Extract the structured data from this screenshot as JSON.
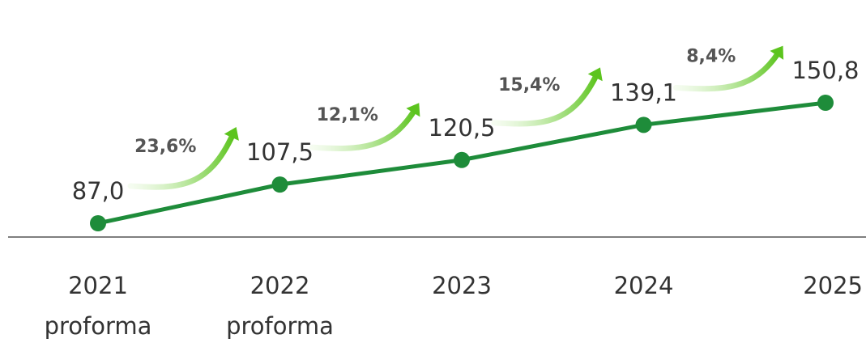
{
  "chart_data": {
    "type": "line",
    "categories": [
      "2021 proforma",
      "2022 proforma",
      "2023",
      "2024",
      "2025"
    ],
    "series": [
      {
        "color": "#1e8c3a",
        "values": [
          87.0,
          107.5,
          120.5,
          139.1,
          150.8
        ],
        "value_labels": [
          "87,0",
          "107,5",
          "120,5",
          "139,1",
          "150,8"
        ]
      }
    ],
    "growth_labels": [
      "23,6%",
      "12,1%",
      "15,4%",
      "8,4%"
    ]
  }
}
